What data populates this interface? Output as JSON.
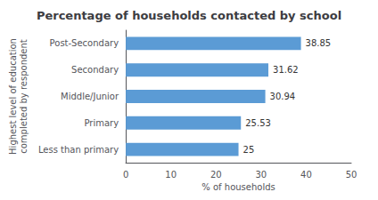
{
  "chart_data": {
    "type": "bar",
    "orientation": "horizontal",
    "title": "Percentage of households contacted by school",
    "categories": [
      "Post-Secondary",
      "Secondary",
      "Middle/Junior",
      "Primary",
      "Less than primary"
    ],
    "values": [
      38.85,
      31.62,
      30.94,
      25.53,
      25
    ],
    "color": "#5B9BD5",
    "xlabel": "% of households",
    "ylabel": "Highest level of education\ncompleted by respondent",
    "xlim": [
      0,
      50
    ],
    "xticks": [
      0,
      10,
      20,
      30,
      40,
      50
    ],
    "grid": false,
    "data_labels": true
  }
}
